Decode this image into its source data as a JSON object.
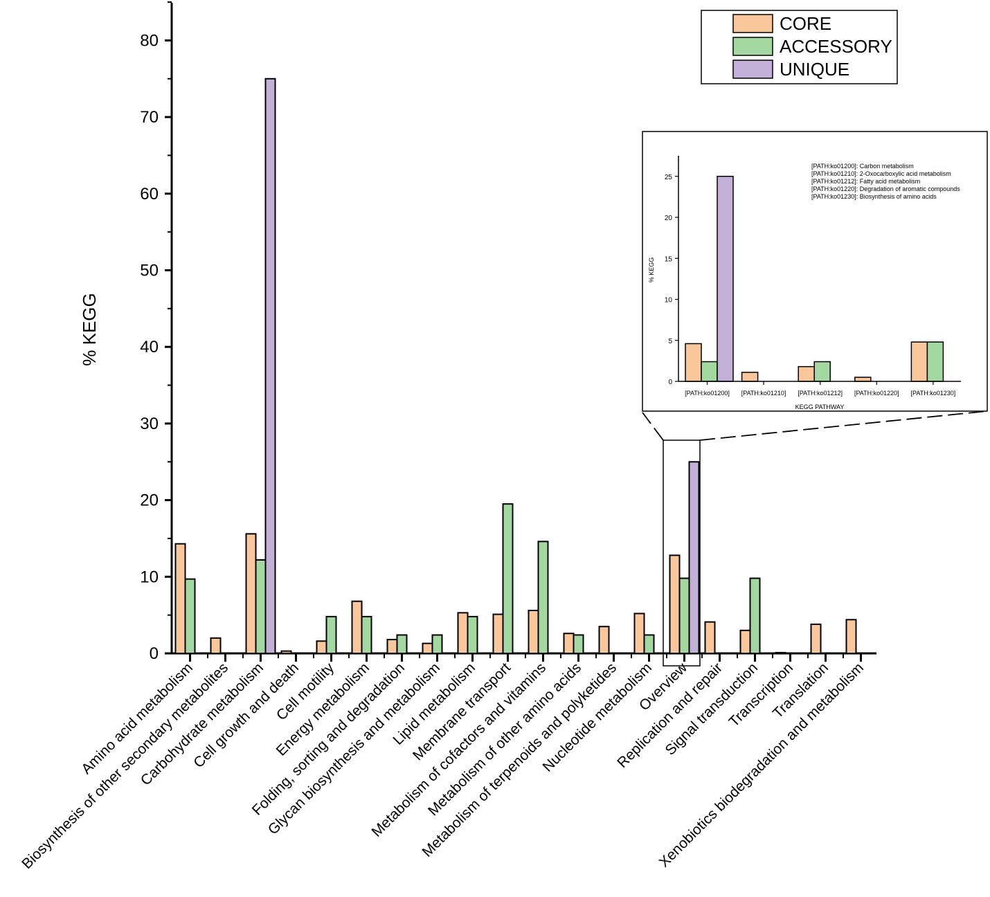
{
  "chart_data": {
    "type": "bar",
    "ylabel": "% KEGG",
    "ylim": [
      0,
      85
    ],
    "yticks": [
      0,
      10,
      20,
      30,
      40,
      50,
      60,
      70,
      80
    ],
    "categories": [
      "Amino acid metabolism",
      "Biosynthesis of other secondary metabolites",
      "Carbohydrate metabolism",
      "Cell growth and death",
      "Cell motility",
      "Energy metabolism",
      "Folding, sorting and degradation",
      "Glycan biosynthesis and metabolism",
      "Lipid metabolism",
      "Membrane transport",
      "Metabolism of cofactors and vitamins",
      "Metabolism of other amino acids",
      "Metabolism of terpenoids and polyketides",
      "Nucleotide metabolism",
      "Overview",
      "Replication and repair",
      "Signal transduction",
      "Transcription",
      "Translation",
      "Xenobiotics biodegradation and metabolism"
    ],
    "series": [
      {
        "name": "CORE",
        "color": "#F9C799",
        "values": [
          14.3,
          2.0,
          15.6,
          0.3,
          1.6,
          6.8,
          1.8,
          1.3,
          5.3,
          5.1,
          5.6,
          2.6,
          3.5,
          5.2,
          12.8,
          4.1,
          3.0,
          0.1,
          3.8,
          4.4
        ]
      },
      {
        "name": "ACCESSORY",
        "color": "#A3D9A0",
        "values": [
          9.7,
          0,
          12.2,
          0,
          4.8,
          4.8,
          2.4,
          2.4,
          4.8,
          19.5,
          14.6,
          2.4,
          0,
          2.4,
          9.8,
          0,
          9.8,
          0,
          0,
          0
        ]
      },
      {
        "name": "UNIQUE",
        "color": "#C2B0D9",
        "values": [
          0,
          0,
          75.0,
          0,
          0,
          0,
          0,
          0,
          0,
          0,
          0,
          0,
          0,
          0,
          25.0,
          0,
          0,
          0,
          0,
          0
        ]
      }
    ],
    "legend": [
      "CORE",
      "ACCESSORY",
      "UNIQUE"
    ],
    "highlighted_category": "Overview",
    "inset": {
      "type": "bar",
      "xlabel": "KEGG PATHWAY",
      "ylabel": "% KEGG",
      "ylim": [
        0,
        27
      ],
      "yticks": [
        0,
        5,
        10,
        15,
        20,
        25
      ],
      "categories": [
        "[PATH:ko01200]",
        "[PATH:ko01210]",
        "[PATH:ko01212]",
        "[PATH:ko01220]",
        "[PATH:ko01230]"
      ],
      "series": [
        {
          "name": "CORE",
          "color": "#F9C799",
          "values": [
            4.6,
            1.1,
            1.8,
            0.5,
            4.8
          ]
        },
        {
          "name": "ACCESSORY",
          "color": "#A3D9A0",
          "values": [
            2.4,
            0,
            2.4,
            0,
            4.8
          ]
        },
        {
          "name": "UNIQUE",
          "color": "#C2B0D9",
          "values": [
            25.0,
            0,
            0,
            0,
            0
          ]
        }
      ],
      "annotations": [
        "[PATH:ko01200]: Carbon metabolism",
        "[PATH:ko01210]: 2-Oxocarboxylic acid metabolism",
        "[PATH:ko01212]: Fatty acid metabolism",
        "[PATH:ko01220]: Degradation of aromatic compounds",
        "[PATH:ko01230]: Biosynthesis of amino acids"
      ]
    }
  }
}
